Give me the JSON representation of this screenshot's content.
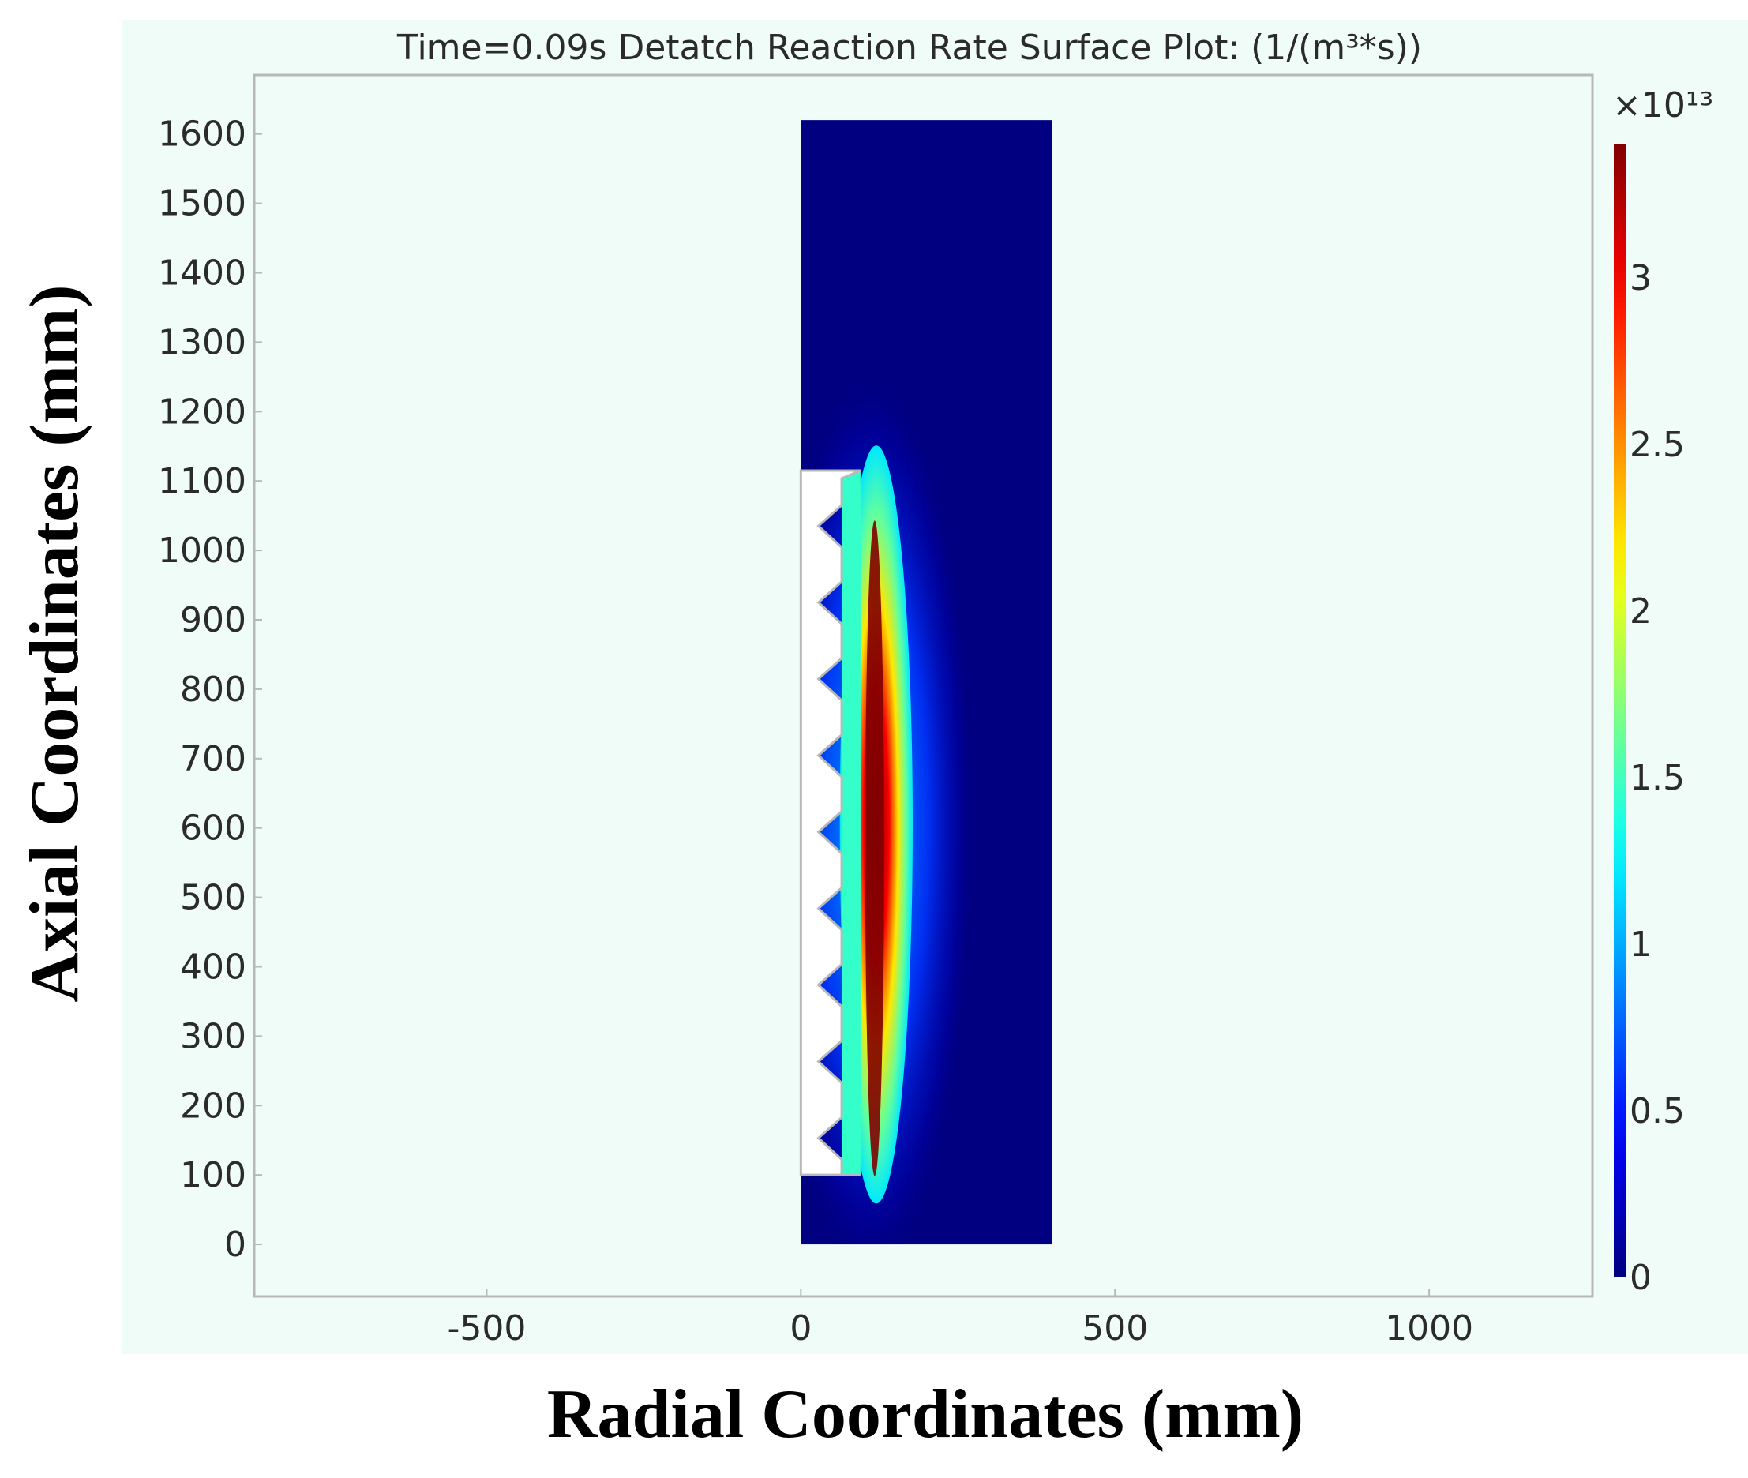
{
  "chart_data": {
    "type": "heatmap",
    "title": "Time=0.09s Detatch Reaction Rate Surface Plot:  (1/(m³*s))",
    "xlabel": "Radial Coordinates (mm)",
    "ylabel": "Axial Coordinates (mm)",
    "xlim": [
      -870,
      1260
    ],
    "ylim": [
      -75,
      1685
    ],
    "x_ticks": [
      {
        "value": -500,
        "label": "-500"
      },
      {
        "value": 0,
        "label": "0"
      },
      {
        "value": 500,
        "label": "500"
      },
      {
        "value": 1000,
        "label": "1000"
      }
    ],
    "y_ticks": [
      {
        "value": 0,
        "label": "0"
      },
      {
        "value": 100,
        "label": "100"
      },
      {
        "value": 200,
        "label": "200"
      },
      {
        "value": 300,
        "label": "300"
      },
      {
        "value": 400,
        "label": "400"
      },
      {
        "value": 500,
        "label": "500"
      },
      {
        "value": 600,
        "label": "600"
      },
      {
        "value": 700,
        "label": "700"
      },
      {
        "value": 800,
        "label": "800"
      },
      {
        "value": 900,
        "label": "900"
      },
      {
        "value": 1000,
        "label": "1000"
      },
      {
        "value": 1100,
        "label": "1100"
      },
      {
        "value": 1200,
        "label": "1200"
      },
      {
        "value": 1300,
        "label": "1300"
      },
      {
        "value": 1400,
        "label": "1400"
      },
      {
        "value": 1500,
        "label": "1500"
      },
      {
        "value": 1600,
        "label": "1600"
      }
    ],
    "domain": {
      "r_min": 0,
      "r_max": 400,
      "z_min": 0,
      "z_max": 1620
    },
    "cutout": {
      "r_min": 0,
      "r_max": 95,
      "z_min": 100,
      "z_max": 1115,
      "fins": 9
    },
    "hotspot": {
      "r_center": 110,
      "z_min": 110,
      "z_max": 1100,
      "peak_value": 3.4
    },
    "colorbar": {
      "min": 0,
      "max": 3.4,
      "multiplier": "×10¹³",
      "ticks": [
        {
          "value": 0,
          "label": "0"
        },
        {
          "value": 0.5,
          "label": "0.5"
        },
        {
          "value": 1,
          "label": "1"
        },
        {
          "value": 1.5,
          "label": "1.5"
        },
        {
          "value": 2,
          "label": "2"
        },
        {
          "value": 2.5,
          "label": "2.5"
        },
        {
          "value": 3,
          "label": "3"
        }
      ],
      "colormap": "jet"
    },
    "colors": {
      "background": "#f0fcf8",
      "frame": "#b8b8b8",
      "low": "#00008f",
      "high": "#800000"
    }
  }
}
